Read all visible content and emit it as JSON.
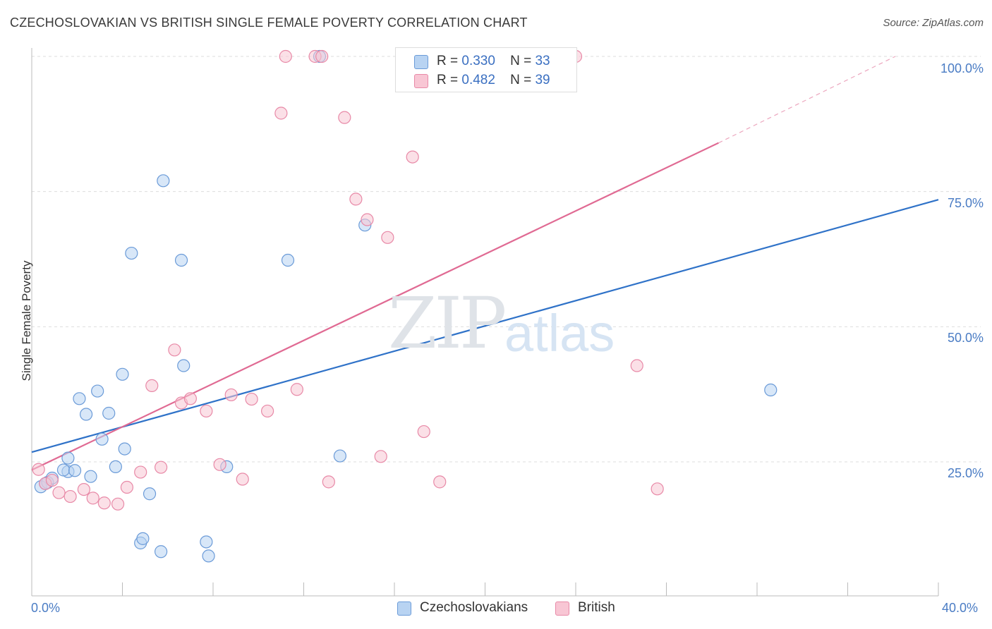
{
  "header": {
    "title": "CZECHOSLOVAKIAN VS BRITISH SINGLE FEMALE POVERTY CORRELATION CHART",
    "source": "Source: ZipAtlas.com"
  },
  "watermark": {
    "zip": "ZIP",
    "atlas": "atlas"
  },
  "legend": {
    "r_label": "R =",
    "n_label": "N =",
    "rows": [
      {
        "r": "0.330",
        "n": "33"
      },
      {
        "r": "0.482",
        "n": "39"
      }
    ]
  },
  "colors": {
    "blue_fill": "#b8d3f2",
    "blue_stroke": "#6b9bd8",
    "blue_line": "#2f72c8",
    "pink_fill": "#f8c6d4",
    "pink_stroke": "#e889a7",
    "pink_line": "#e06a93",
    "grid": "#dddddd",
    "tick_text": "#4a7cc4"
  },
  "chart_data": {
    "type": "scatter",
    "title": "CZECHOSLOVAKIAN VS BRITISH SINGLE FEMALE POVERTY CORRELATION CHART",
    "ylabel": "Single Female Poverty",
    "xlabel": "",
    "xlim": [
      0,
      40
    ],
    "ylim": [
      0,
      102
    ],
    "x_ticks": [
      "0.0%",
      "40.0%"
    ],
    "y_ticks": [
      {
        "value": 25,
        "label": "25.0%"
      },
      {
        "value": 50,
        "label": "50.0%"
      },
      {
        "value": 75,
        "label": "75.0%"
      },
      {
        "value": 100,
        "label": "100.0%"
      }
    ],
    "legend_entries": [
      "Czechoslovakians",
      "British"
    ],
    "series": [
      {
        "name": "Czechoslovakians",
        "r": 0.33,
        "n": 33,
        "trend": {
          "x0": 0,
          "y0": 26.8,
          "x1": 40,
          "y1": 73.5
        },
        "points": [
          [
            0.4,
            20.4
          ],
          [
            0.7,
            21.2
          ],
          [
            0.9,
            22.0
          ],
          [
            1.6,
            23.2
          ],
          [
            1.4,
            23.5
          ],
          [
            1.9,
            23.4
          ],
          [
            1.6,
            25.7
          ],
          [
            2.6,
            22.3
          ],
          [
            2.1,
            36.7
          ],
          [
            2.4,
            33.8
          ],
          [
            2.9,
            38.1
          ],
          [
            3.4,
            34.0
          ],
          [
            3.1,
            29.2
          ],
          [
            3.7,
            24.1
          ],
          [
            4.1,
            27.4
          ],
          [
            4.0,
            41.2
          ],
          [
            4.4,
            63.6
          ],
          [
            4.8,
            10.0
          ],
          [
            4.9,
            10.8
          ],
          [
            5.2,
            19.1
          ],
          [
            5.7,
            8.4
          ],
          [
            5.8,
            77.0
          ],
          [
            6.6,
            62.3
          ],
          [
            6.7,
            42.8
          ],
          [
            7.7,
            10.2
          ],
          [
            7.8,
            7.6
          ],
          [
            8.6,
            24.1
          ],
          [
            11.3,
            62.3
          ],
          [
            12.7,
            100.0
          ],
          [
            13.6,
            26.1
          ],
          [
            14.7,
            68.8
          ],
          [
            32.6,
            38.3
          ],
          [
            0.6,
            21.0
          ]
        ]
      },
      {
        "name": "British",
        "r": 0.482,
        "n": 39,
        "trend": {
          "x0": 0,
          "y0": 23.5,
          "x1": 30.3,
          "y1": 84.0,
          "dash_to_x": 38.1,
          "dash_to_y": 100.0
        },
        "points": [
          [
            0.3,
            23.6
          ],
          [
            0.6,
            21.0
          ],
          [
            0.9,
            21.6
          ],
          [
            1.2,
            19.3
          ],
          [
            1.7,
            18.6
          ],
          [
            2.3,
            19.9
          ],
          [
            2.7,
            18.3
          ],
          [
            3.2,
            17.4
          ],
          [
            3.8,
            17.2
          ],
          [
            4.2,
            20.3
          ],
          [
            4.8,
            23.1
          ],
          [
            5.3,
            39.1
          ],
          [
            5.7,
            24.0
          ],
          [
            6.3,
            45.7
          ],
          [
            6.6,
            35.9
          ],
          [
            7.0,
            36.7
          ],
          [
            7.7,
            34.4
          ],
          [
            8.3,
            24.5
          ],
          [
            8.8,
            37.4
          ],
          [
            9.3,
            21.8
          ],
          [
            9.7,
            36.6
          ],
          [
            10.4,
            34.4
          ],
          [
            11.0,
            89.5
          ],
          [
            11.2,
            100.0
          ],
          [
            11.7,
            38.4
          ],
          [
            12.5,
            100.0
          ],
          [
            13.1,
            21.3
          ],
          [
            13.8,
            88.7
          ],
          [
            14.3,
            73.6
          ],
          [
            14.8,
            69.8
          ],
          [
            15.4,
            26.0
          ],
          [
            15.7,
            66.5
          ],
          [
            16.8,
            81.4
          ],
          [
            17.3,
            30.6
          ],
          [
            18.0,
            21.3
          ],
          [
            24.0,
            100.0
          ],
          [
            26.7,
            42.8
          ],
          [
            27.6,
            20.0
          ],
          [
            12.8,
            100.0
          ]
        ]
      }
    ]
  }
}
